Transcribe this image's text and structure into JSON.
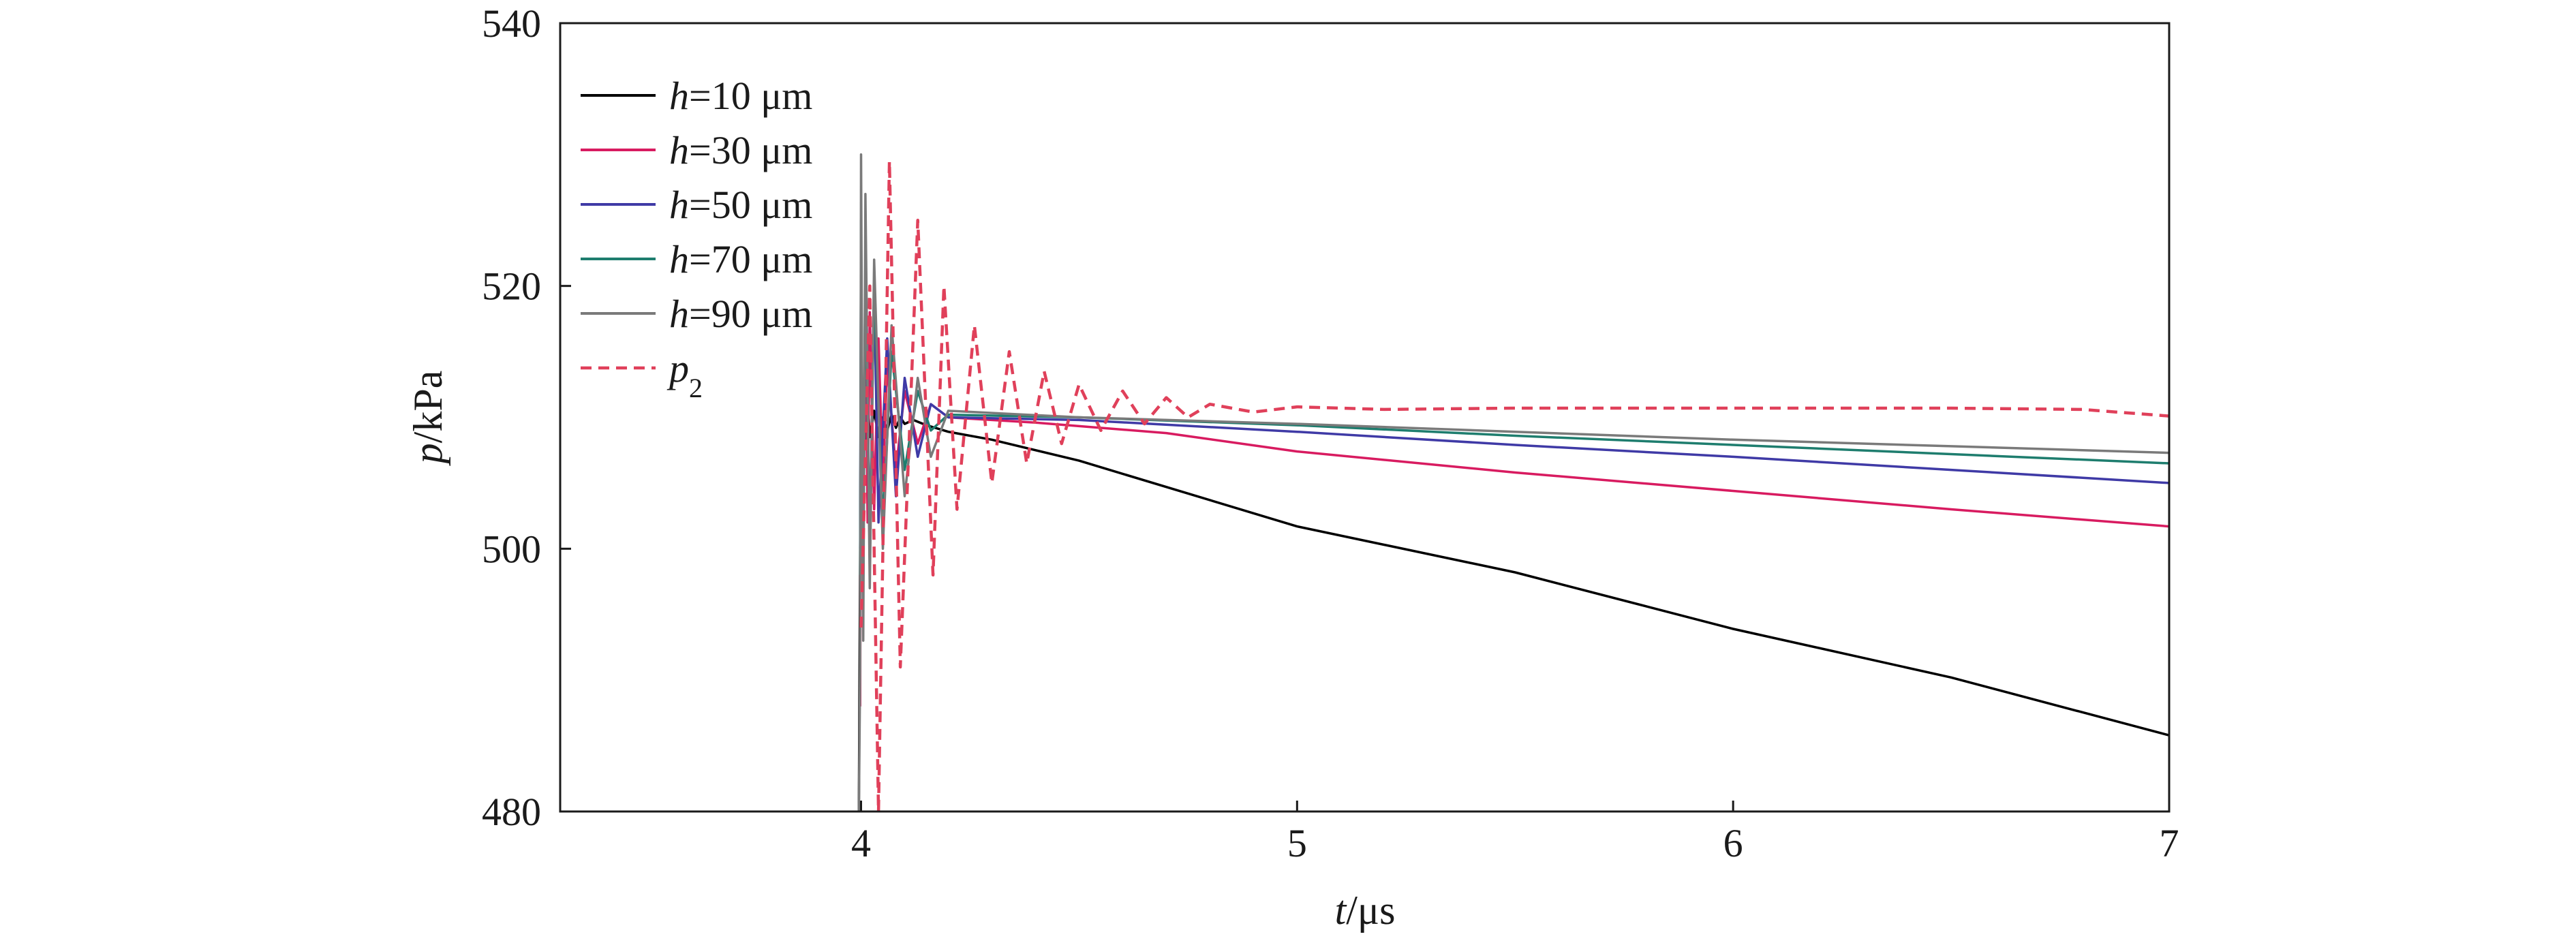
{
  "chart_data": {
    "type": "line",
    "title": "",
    "xlabel": {
      "var": "t",
      "unit": "/μs"
    },
    "ylabel": {
      "var": "p",
      "unit": "/kPa"
    },
    "xlim": [
      3.31,
      7.0
    ],
    "ylim": [
      480,
      540
    ],
    "xticks": [
      4,
      5,
      6,
      7
    ],
    "yticks": [
      480,
      500,
      520,
      540
    ],
    "grid": false,
    "legend_position": "top-left",
    "series": [
      {
        "name": "h=10 μm",
        "legend_var": "h",
        "legend_rest": "=10 μm",
        "color": "#000000",
        "dash": "solid",
        "points": [
          [
            3.995,
            480
          ],
          [
            3.998,
            500
          ],
          [
            4.0,
            515
          ],
          [
            4.003,
            507
          ],
          [
            4.006,
            512
          ],
          [
            4.01,
            508
          ],
          [
            4.015,
            511.5
          ],
          [
            4.02,
            508.5
          ],
          [
            4.03,
            510.5
          ],
          [
            4.04,
            508.5
          ],
          [
            4.05,
            510
          ],
          [
            4.06,
            509
          ],
          [
            4.07,
            510.2
          ],
          [
            4.08,
            509.2
          ],
          [
            4.09,
            510
          ],
          [
            4.1,
            509.5
          ],
          [
            4.12,
            509.8
          ],
          [
            4.15,
            509.4
          ],
          [
            4.2,
            508.9
          ],
          [
            4.3,
            508.3
          ],
          [
            4.5,
            506.7
          ],
          [
            5.0,
            501.7
          ],
          [
            5.5,
            498.2
          ],
          [
            6.0,
            493.9
          ],
          [
            6.5,
            490.2
          ],
          [
            7.0,
            485.8
          ]
        ]
      },
      {
        "name": "h=30 μm",
        "legend_var": "h",
        "legend_rest": "=30 μm",
        "color": "#d81b60",
        "dash": "solid",
        "points": [
          [
            3.998,
            488
          ],
          [
            4.0,
            520
          ],
          [
            4.005,
            500
          ],
          [
            4.01,
            521
          ],
          [
            4.015,
            502
          ],
          [
            4.02,
            518
          ],
          [
            4.03,
            503
          ],
          [
            4.04,
            516
          ],
          [
            4.05,
            505
          ],
          [
            4.06,
            514
          ],
          [
            4.08,
            506
          ],
          [
            4.1,
            512
          ],
          [
            4.13,
            508
          ],
          [
            4.16,
            511
          ],
          [
            4.2,
            510
          ],
          [
            4.4,
            509.6
          ],
          [
            4.7,
            508.8
          ],
          [
            5.0,
            507.4
          ],
          [
            5.5,
            505.8
          ],
          [
            6.0,
            504.4
          ],
          [
            6.5,
            503.0
          ],
          [
            7.0,
            501.7
          ]
        ]
      },
      {
        "name": "h=50 μm",
        "legend_var": "h",
        "legend_rest": "=50 μm",
        "color": "#3f3aa6",
        "dash": "solid",
        "points": [
          [
            3.998,
            500
          ],
          [
            4.0,
            523
          ],
          [
            4.005,
            498
          ],
          [
            4.01,
            522
          ],
          [
            4.02,
            500
          ],
          [
            4.03,
            520
          ],
          [
            4.04,
            502
          ],
          [
            4.06,
            516
          ],
          [
            4.08,
            504
          ],
          [
            4.1,
            513
          ],
          [
            4.13,
            507
          ],
          [
            4.16,
            511
          ],
          [
            4.2,
            510
          ],
          [
            4.5,
            509.8
          ],
          [
            5.0,
            508.9
          ],
          [
            5.5,
            507.9
          ],
          [
            6.0,
            507.0
          ],
          [
            6.5,
            506.0
          ],
          [
            7.0,
            505.0
          ]
        ]
      },
      {
        "name": "h=70 μm",
        "legend_var": "h",
        "legend_rest": "=70 μm",
        "color": "#1e7d6e",
        "dash": "solid",
        "points": [
          [
            3.998,
            498
          ],
          [
            4.0,
            525
          ],
          [
            4.005,
            497
          ],
          [
            4.01,
            523
          ],
          [
            4.02,
            499
          ],
          [
            4.03,
            520
          ],
          [
            4.05,
            502
          ],
          [
            4.07,
            515
          ],
          [
            4.1,
            506
          ],
          [
            4.13,
            512
          ],
          [
            4.16,
            509
          ],
          [
            4.2,
            510.2
          ],
          [
            4.5,
            510
          ],
          [
            5.0,
            509.4
          ],
          [
            5.5,
            508.6
          ],
          [
            6.0,
            507.9
          ],
          [
            6.5,
            507.2
          ],
          [
            7.0,
            506.5
          ]
        ]
      },
      {
        "name": "h=90 μm",
        "legend_var": "h",
        "legend_rest": "=90 μm",
        "color": "#7a7a7a",
        "dash": "solid",
        "points": [
          [
            3.995,
            480
          ],
          [
            3.998,
            491
          ],
          [
            4.0,
            530
          ],
          [
            4.005,
            493
          ],
          [
            4.01,
            527
          ],
          [
            4.02,
            497
          ],
          [
            4.03,
            522
          ],
          [
            4.05,
            500
          ],
          [
            4.07,
            517
          ],
          [
            4.1,
            504
          ],
          [
            4.13,
            513
          ],
          [
            4.16,
            507
          ],
          [
            4.2,
            510.5
          ],
          [
            4.5,
            510
          ],
          [
            5.0,
            509.5
          ],
          [
            5.5,
            508.9
          ],
          [
            6.0,
            508.3
          ],
          [
            6.5,
            507.8
          ],
          [
            7.0,
            507.3
          ]
        ]
      },
      {
        "name": "p2",
        "legend_var": "p",
        "legend_sub": "2",
        "color": "#e0405a",
        "dash": "dashed",
        "points": [
          [
            4.0,
            494
          ],
          [
            4.02,
            520
          ],
          [
            4.04,
            480
          ],
          [
            4.065,
            529.5
          ],
          [
            4.09,
            491
          ],
          [
            4.13,
            525
          ],
          [
            4.165,
            498
          ],
          [
            4.19,
            520
          ],
          [
            4.22,
            503
          ],
          [
            4.26,
            517
          ],
          [
            4.3,
            505
          ],
          [
            4.34,
            515
          ],
          [
            4.38,
            506.5
          ],
          [
            4.42,
            513.5
          ],
          [
            4.46,
            508
          ],
          [
            4.5,
            512.5
          ],
          [
            4.55,
            509
          ],
          [
            4.6,
            512
          ],
          [
            4.65,
            509.5
          ],
          [
            4.7,
            511.5
          ],
          [
            4.75,
            510
          ],
          [
            4.8,
            511
          ],
          [
            4.9,
            510.4
          ],
          [
            5.0,
            510.8
          ],
          [
            5.2,
            510.6
          ],
          [
            5.5,
            510.7
          ],
          [
            6.0,
            510.7
          ],
          [
            6.5,
            510.7
          ],
          [
            6.8,
            510.6
          ],
          [
            7.0,
            510.1
          ]
        ]
      }
    ]
  }
}
